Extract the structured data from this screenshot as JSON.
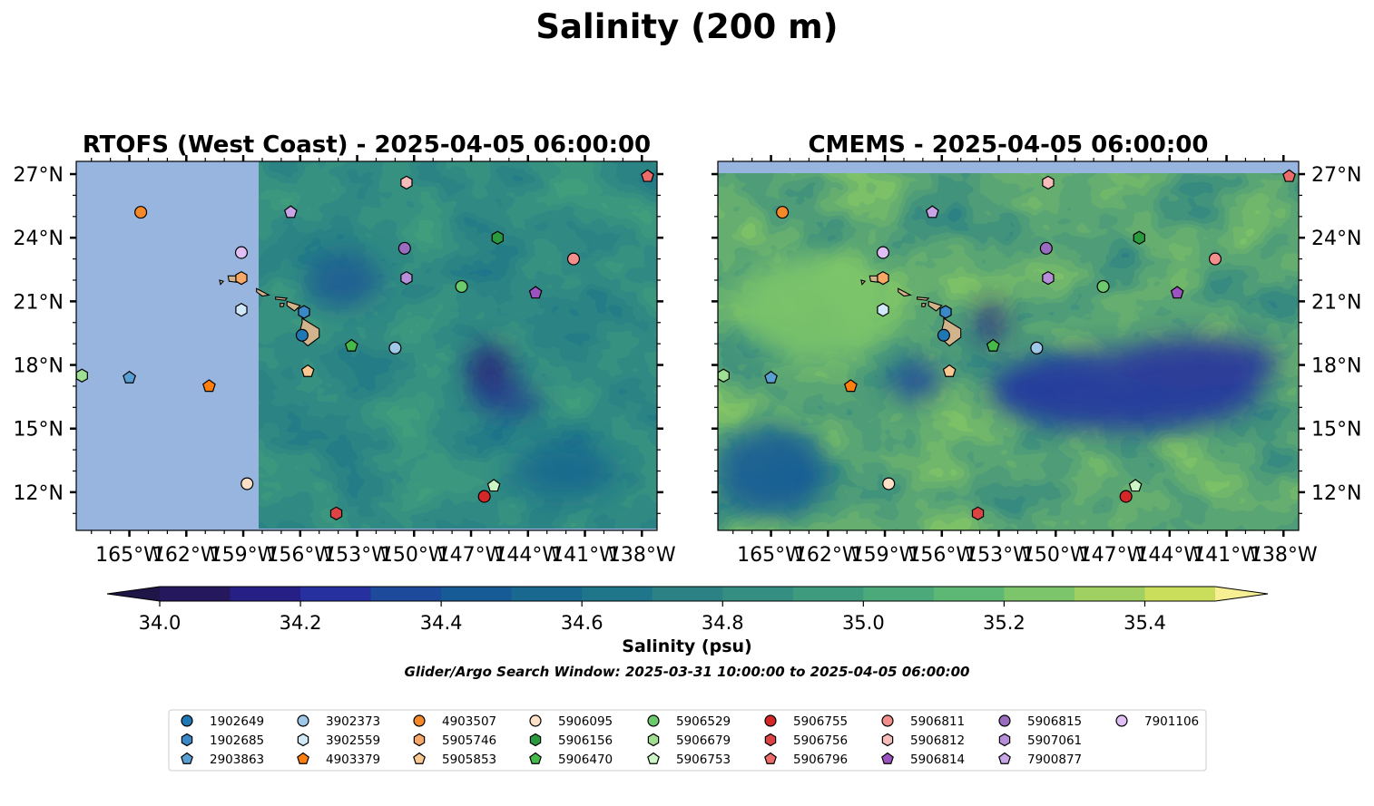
{
  "figure": {
    "title": "Salinity (200 m)",
    "search_window": "Glider/Argo Search Window: 2025-03-31 10:00:00 to 2025-04-05 06:00:00"
  },
  "colors": {
    "ocean_fill": "#98b5e0",
    "land": "#d2b48c",
    "salinity_levels": [
      "#25185c",
      "#261f86",
      "#26309f",
      "#1e4a9c",
      "#175b96",
      "#19688f",
      "#1f7589",
      "#2b8184",
      "#358e82",
      "#3f9b7e",
      "#4ba97a",
      "#5eb875",
      "#7cc56b",
      "#a0d061",
      "#cade5c"
    ],
    "colorbar_under": "#1f1547",
    "colorbar_over": "#f6ef93"
  },
  "chart_data": [
    {
      "type": "heatmap",
      "name": "rtofs",
      "title": "RTOFS (West Coast) - 2025-04-05 06:00:00",
      "variable": "Salinity (psu)",
      "lon_range": [
        -167.8,
        -137.2
      ],
      "lat_range": [
        10.2,
        27.6
      ],
      "lat_ticks": [
        "27°N",
        "24°N",
        "21°N",
        "18°N",
        "15°N",
        "12°N"
      ],
      "lat_tick_values": [
        27,
        24,
        21,
        18,
        15,
        12
      ],
      "lon_ticks": [
        "165°W",
        "162°W",
        "159°W",
        "156°W",
        "153°W",
        "150°W",
        "147°W",
        "144°W",
        "141°W",
        "138°W"
      ],
      "lon_tick_values": [
        -165,
        -162,
        -159,
        -156,
        -153,
        -150,
        -147,
        -144,
        -141,
        -138
      ],
      "lat_labels_side": "left",
      "grid": false,
      "data_coverage": "east of 158.1°W only; west of 158.1°W unfilled"
    },
    {
      "type": "heatmap",
      "name": "cmems",
      "title": "CMEMS - 2025-04-05 06:00:00",
      "variable": "Salinity (psu)",
      "lon_range": [
        -167.8,
        -137.2
      ],
      "lat_range": [
        10.2,
        27.6
      ],
      "lat_ticks": [
        "27°N",
        "24°N",
        "21°N",
        "18°N",
        "15°N",
        "12°N"
      ],
      "lat_tick_values": [
        27,
        24,
        21,
        18,
        15,
        12
      ],
      "lon_ticks": [
        "165°W",
        "162°W",
        "159°W",
        "156°W",
        "153°W",
        "150°W",
        "147°W",
        "144°W",
        "141°W",
        "138°W"
      ],
      "lon_tick_values": [
        -165,
        -162,
        -159,
        -156,
        -153,
        -150,
        -147,
        -144,
        -141,
        -138
      ],
      "lat_labels_side": "right",
      "grid": false,
      "data_coverage": "full domain up to 27°N"
    }
  ],
  "colorbar": {
    "label": "Salinity (psu)",
    "min": 34.0,
    "max": 35.5,
    "step": 0.1,
    "extend": "both",
    "tick_values": [
      34.0,
      34.2,
      34.4,
      34.6,
      34.8,
      35.0,
      35.2,
      35.4
    ],
    "tick_labels": [
      "34.0",
      "34.2",
      "34.4",
      "34.6",
      "34.8",
      "35.0",
      "35.2",
      "35.4"
    ]
  },
  "floats": [
    {
      "id": "1902649",
      "marker": "circle",
      "color": "#1f77b4",
      "lon": -155.9,
      "lat": 19.4
    },
    {
      "id": "1902685",
      "marker": "hexagon",
      "color": "#3a89c6",
      "lon": -155.8,
      "lat": 20.5
    },
    {
      "id": "2903863",
      "marker": "pentagon",
      "color": "#5a9fd4",
      "lon": -165.0,
      "lat": 17.4
    },
    {
      "id": "3902373",
      "marker": "circle",
      "color": "#9fc8e8",
      "lon": -151.0,
      "lat": 18.8
    },
    {
      "id": "3902559",
      "marker": "hexagon",
      "color": "#d0e8f8",
      "lon": -159.1,
      "lat": 20.6
    },
    {
      "id": "4903379",
      "marker": "pentagon",
      "color": "#ff7f0e",
      "lon": -160.8,
      "lat": 17.0
    },
    {
      "id": "4903507",
      "marker": "circle",
      "color": "#f5892a",
      "lon": -164.4,
      "lat": 25.2
    },
    {
      "id": "5905746",
      "marker": "hexagon",
      "color": "#f7a866",
      "lon": -159.1,
      "lat": 22.1
    },
    {
      "id": "5905853",
      "marker": "pentagon",
      "color": "#fcc891",
      "lon": -155.6,
      "lat": 17.7
    },
    {
      "id": "5906095",
      "marker": "circle",
      "color": "#fde0c5",
      "lon": -158.8,
      "lat": 12.4
    },
    {
      "id": "5906156",
      "marker": "hexagon",
      "color": "#2a9a3c",
      "lon": -145.6,
      "lat": 24.0
    },
    {
      "id": "5906470",
      "marker": "pentagon",
      "color": "#45b94a",
      "lon": -153.3,
      "lat": 18.9
    },
    {
      "id": "5906529",
      "marker": "circle",
      "color": "#6cc96c",
      "lon": -147.5,
      "lat": 21.7
    },
    {
      "id": "5906679",
      "marker": "hexagon",
      "color": "#9edf93",
      "lon": -167.5,
      "lat": 17.5
    },
    {
      "id": "5906753",
      "marker": "pentagon",
      "color": "#ccf5c5",
      "lon": -145.8,
      "lat": 12.3
    },
    {
      "id": "5906755",
      "marker": "circle",
      "color": "#d62728",
      "lon": -146.3,
      "lat": 11.8
    },
    {
      "id": "5906756",
      "marker": "hexagon",
      "color": "#dc4444",
      "lon": -154.1,
      "lat": 11.0
    },
    {
      "id": "5906796",
      "marker": "pentagon",
      "color": "#ee6b6b",
      "lon": -137.7,
      "lat": 26.9
    },
    {
      "id": "5906811",
      "marker": "circle",
      "color": "#f28e8c",
      "lon": -141.6,
      "lat": 23.0
    },
    {
      "id": "5906812",
      "marker": "hexagon",
      "color": "#f7bcbc",
      "lon": -150.4,
      "lat": 26.6
    },
    {
      "id": "5906814",
      "marker": "pentagon",
      "color": "#9c53bf",
      "lon": -143.6,
      "lat": 21.4
    },
    {
      "id": "5906815",
      "marker": "circle",
      "color": "#9a6cc0",
      "lon": -150.5,
      "lat": 23.5
    },
    {
      "id": "5907061",
      "marker": "hexagon",
      "color": "#b68fd8",
      "lon": -150.4,
      "lat": 22.1
    },
    {
      "id": "7900877",
      "marker": "pentagon",
      "color": "#c9a5e8",
      "lon": -156.5,
      "lat": 25.2
    },
    {
      "id": "7901106",
      "marker": "circle",
      "color": "#e0c0f4",
      "lon": -159.1,
      "lat": 23.3
    }
  ]
}
